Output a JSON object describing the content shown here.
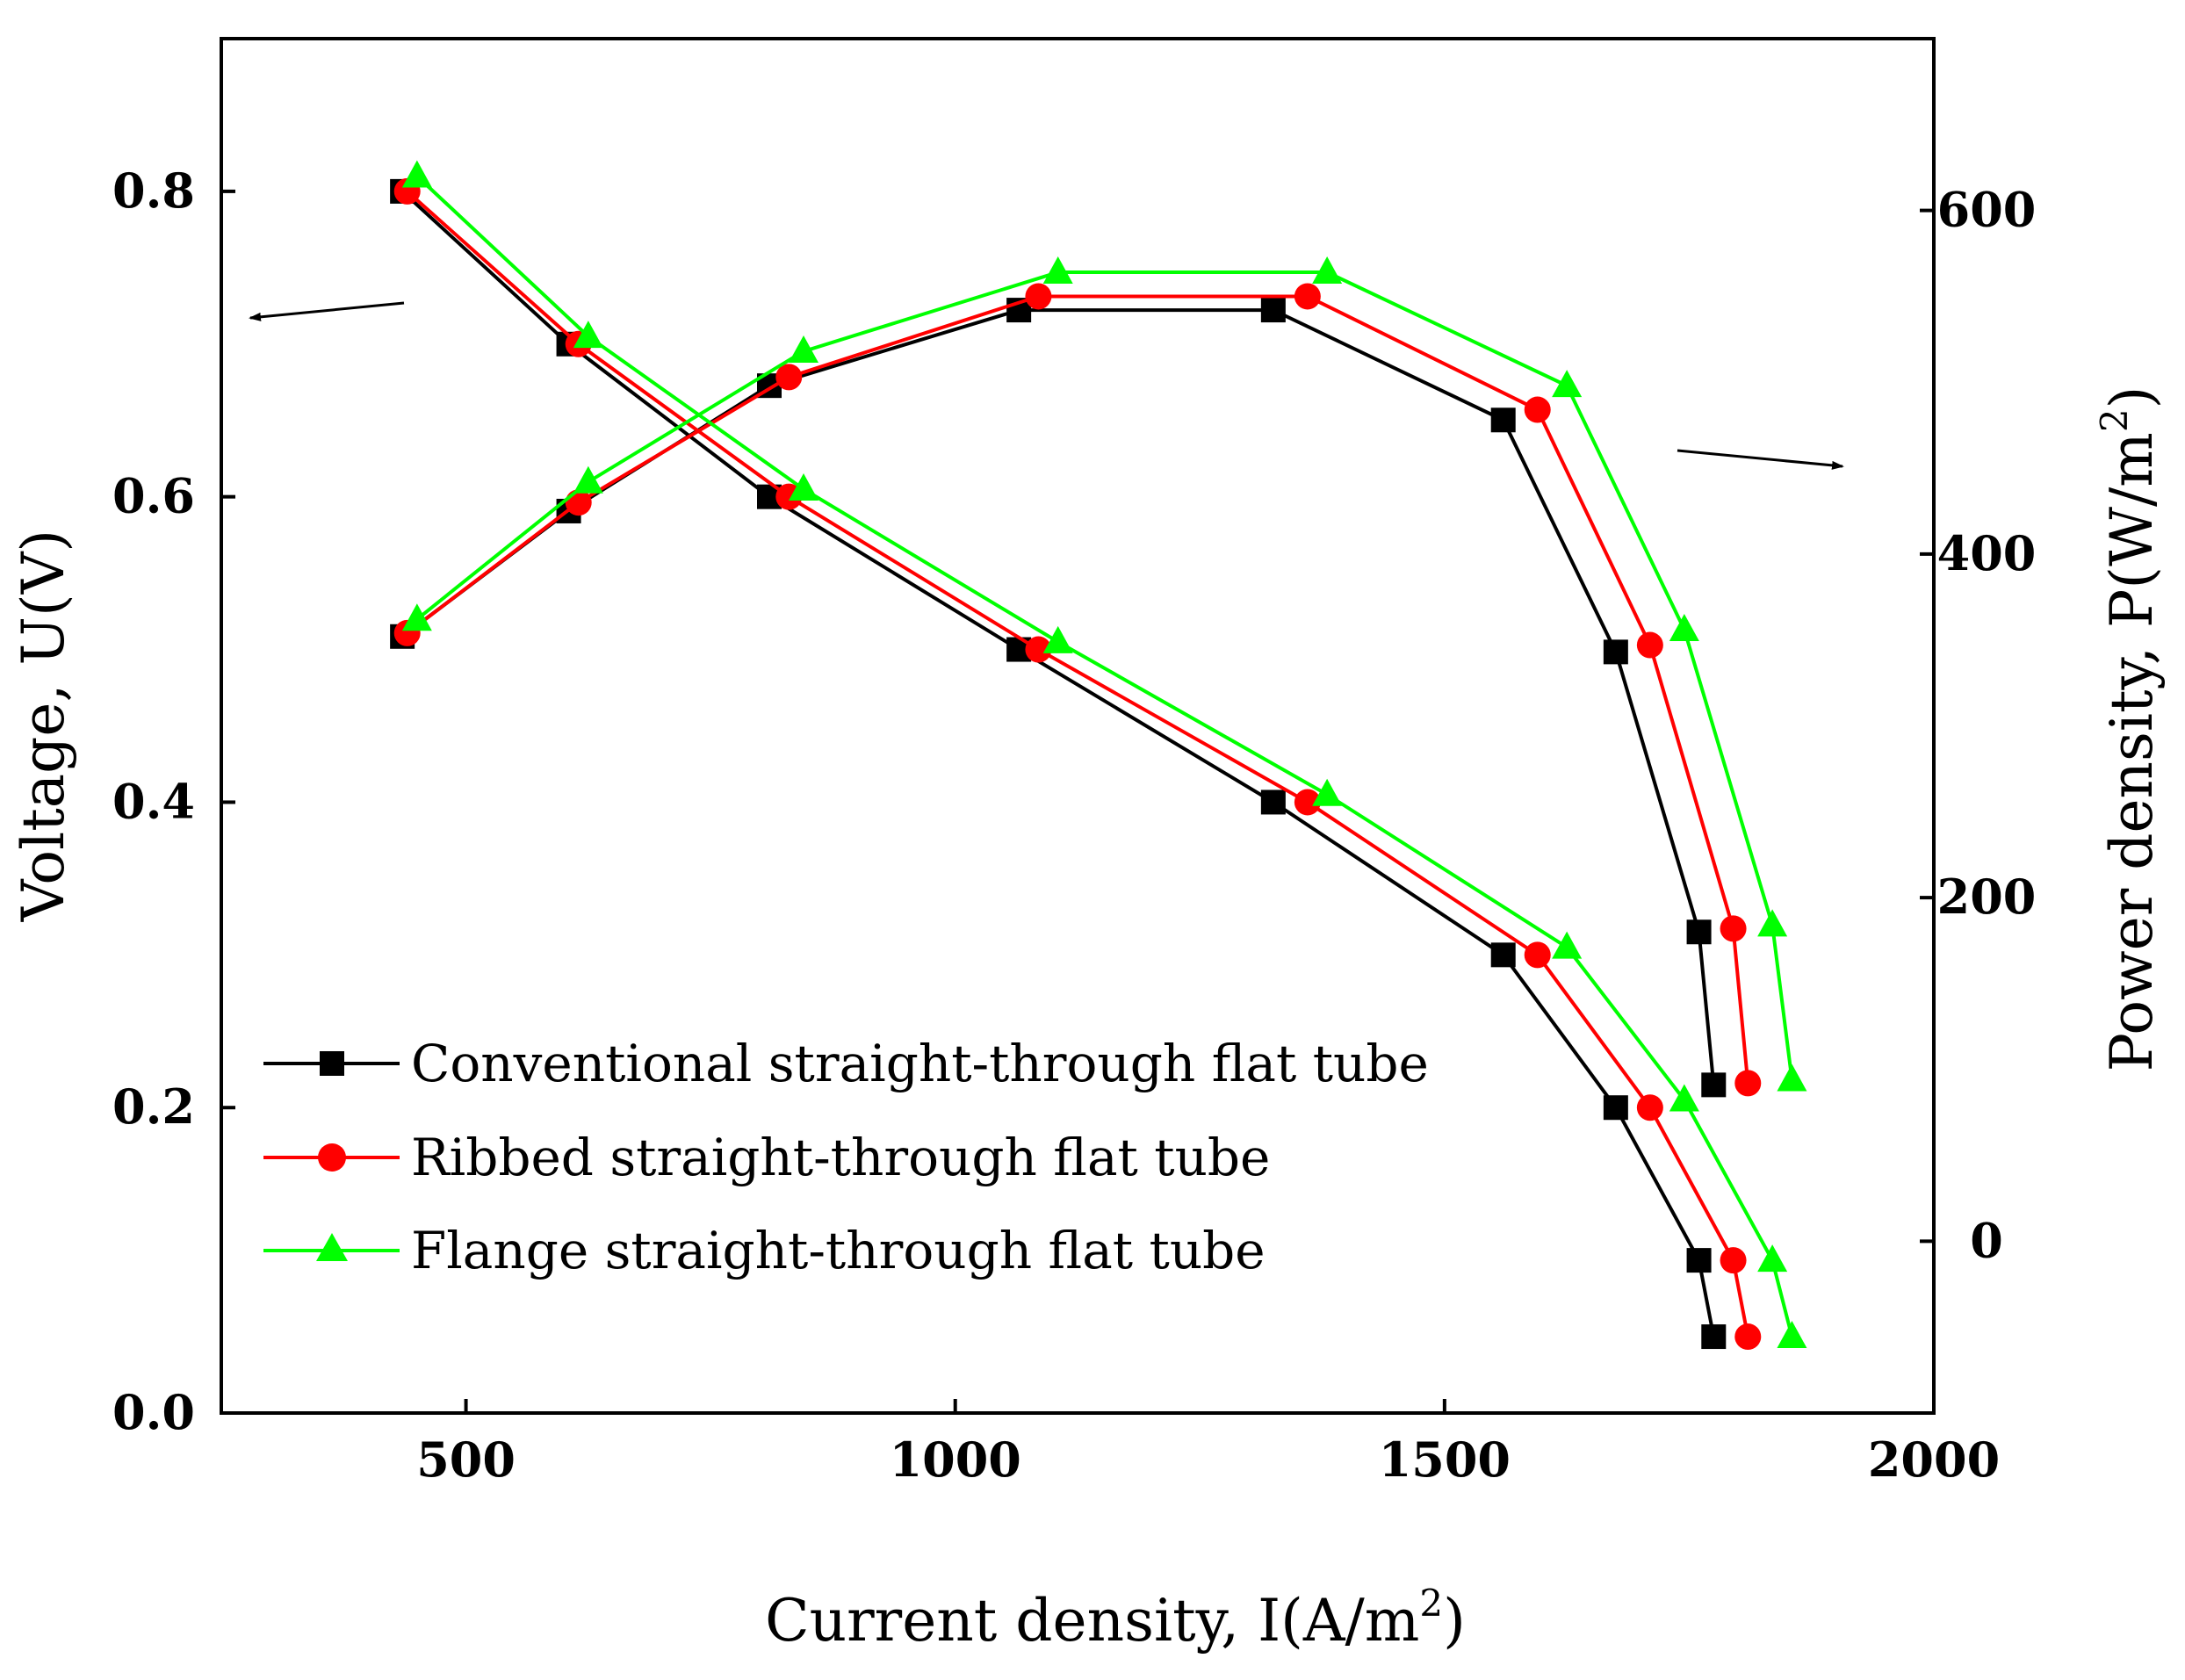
{
  "chart_data": {
    "type": "line",
    "x_axis": {
      "label_main": "Current density, I(A/m",
      "label_sup": "2",
      "label_end": ")",
      "range": [
        250,
        2000
      ],
      "ticks": [
        500,
        1000,
        1500,
        2000
      ],
      "tick_labels": [
        "500",
        "1000",
        "1500",
        "2000"
      ]
    },
    "y_axis_left": {
      "label": "Voltage, U(V)",
      "range": [
        0.0,
        0.9
      ],
      "ticks": [
        0.0,
        0.2,
        0.4,
        0.6,
        0.8
      ],
      "tick_labels": [
        "0.0",
        "0.2",
        "0.4",
        "0.6",
        "0.8"
      ]
    },
    "y_axis_right": {
      "label_main": "Power density, P(W/m",
      "label_sup": "2",
      "label_end": ")",
      "range": [
        -100,
        700
      ],
      "ticks": [
        0,
        200,
        400,
        600
      ],
      "tick_labels": [
        "0",
        "200",
        "400",
        "600"
      ]
    },
    "annotations": [
      {
        "text": "",
        "meaning": "arrow pointing to left axis (voltage curves)"
      },
      {
        "text": "",
        "meaning": "arrow pointing to right axis (power density curves)"
      }
    ],
    "series": [
      {
        "name": "Conventional straight-through flat tube",
        "color": "#000000",
        "marker": "square",
        "voltage": {
          "x": [
            435,
            605,
            810,
            1065,
            1325,
            1560,
            1675,
            1760,
            1775
          ],
          "y": [
            0.8,
            0.7,
            0.6,
            0.5,
            0.4,
            0.3,
            0.2,
            0.1,
            0.05
          ]
        },
        "power": {
          "x": [
            435,
            605,
            810,
            1065,
            1325,
            1560,
            1675,
            1760,
            1775
          ],
          "y": [
            352,
            425,
            498,
            542,
            542,
            478,
            343,
            180,
            91
          ]
        }
      },
      {
        "name": "Ribbed straight-through flat tube",
        "color": "#ff0000",
        "marker": "circle",
        "voltage": {
          "x": [
            440,
            615,
            830,
            1085,
            1360,
            1595,
            1710,
            1795,
            1810
          ],
          "y": [
            0.8,
            0.7,
            0.6,
            0.5,
            0.4,
            0.3,
            0.2,
            0.1,
            0.05
          ]
        },
        "power": {
          "x": [
            440,
            615,
            830,
            1085,
            1360,
            1595,
            1710,
            1795,
            1810
          ],
          "y": [
            354,
            430,
            503,
            550,
            550,
            484,
            347,
            182,
            92
          ]
        }
      },
      {
        "name": "Flange straight-through flat tube",
        "color": "#00ff00",
        "marker": "triangle",
        "voltage": {
          "x": [
            450,
            625,
            845,
            1105,
            1380,
            1625,
            1745,
            1835,
            1855
          ],
          "y": [
            0.81,
            0.705,
            0.605,
            0.505,
            0.405,
            0.305,
            0.205,
            0.1,
            0.05
          ]
        },
        "power": {
          "x": [
            450,
            625,
            845,
            1105,
            1380,
            1625,
            1745,
            1835,
            1855
          ],
          "y": [
            362,
            442,
            518,
            564,
            564,
            498,
            356,
            184,
            94
          ]
        }
      }
    ]
  }
}
